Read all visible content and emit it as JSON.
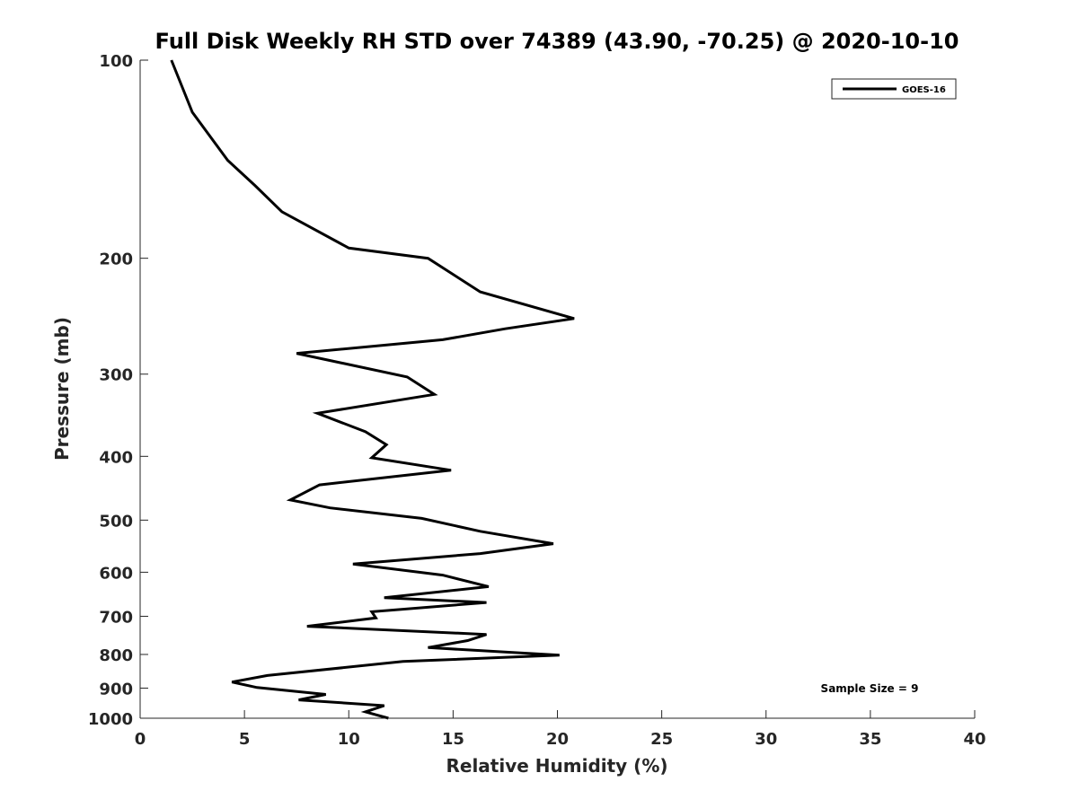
{
  "chart_data": {
    "type": "line",
    "title": "Full Disk Weekly RH STD over 74389 (43.90, -70.25) @ 2020-10-10",
    "xlabel": "Relative Humidity (%)",
    "ylabel": "Pressure (mb)",
    "xlim": [
      0,
      40
    ],
    "ylim": [
      100,
      1000
    ],
    "y_scale": "log",
    "y_reversed": true,
    "x_ticks": [
      "0",
      "5",
      "10",
      "15",
      "20",
      "25",
      "30",
      "35",
      "40"
    ],
    "y_ticks": [
      "100",
      "200",
      "300",
      "400",
      "500",
      "600",
      "700",
      "800",
      "900",
      "1000"
    ],
    "grid": false,
    "legend_position": "top-right",
    "annotation": "Sample Size = 9",
    "series": [
      {
        "name": "GOES-16",
        "color": "#000000",
        "points": [
          [
            1.5,
            100
          ],
          [
            2.5,
            120
          ],
          [
            4.2,
            142
          ],
          [
            5.5,
            155
          ],
          [
            6.8,
            170
          ],
          [
            10.0,
            193
          ],
          [
            13.8,
            200
          ],
          [
            16.3,
            225
          ],
          [
            20.8,
            247
          ],
          [
            17.5,
            256
          ],
          [
            14.5,
            266
          ],
          [
            7.5,
            279
          ],
          [
            12.8,
            303
          ],
          [
            14.1,
            322
          ],
          [
            8.5,
            344
          ],
          [
            10.8,
            367
          ],
          [
            11.8,
            384
          ],
          [
            11.1,
            402
          ],
          [
            14.9,
            420
          ],
          [
            8.6,
            442
          ],
          [
            7.2,
            466
          ],
          [
            9.1,
            479
          ],
          [
            13.5,
            497
          ],
          [
            16.3,
            520
          ],
          [
            19.8,
            543
          ],
          [
            16.3,
            562
          ],
          [
            10.2,
            583
          ],
          [
            14.5,
            606
          ],
          [
            16.7,
            631
          ],
          [
            11.7,
            656
          ],
          [
            16.6,
            667
          ],
          [
            11.1,
            689
          ],
          [
            11.3,
            704
          ],
          [
            8.0,
            725
          ],
          [
            16.6,
            746
          ],
          [
            15.7,
            762
          ],
          [
            13.8,
            781
          ],
          [
            20.1,
            802
          ],
          [
            12.6,
            820
          ],
          [
            6.1,
            861
          ],
          [
            4.4,
            881
          ],
          [
            5.6,
            898
          ],
          [
            8.9,
            920
          ],
          [
            7.6,
            938
          ],
          [
            11.7,
            957
          ],
          [
            10.8,
            978
          ],
          [
            11.9,
            1000
          ]
        ]
      }
    ]
  }
}
